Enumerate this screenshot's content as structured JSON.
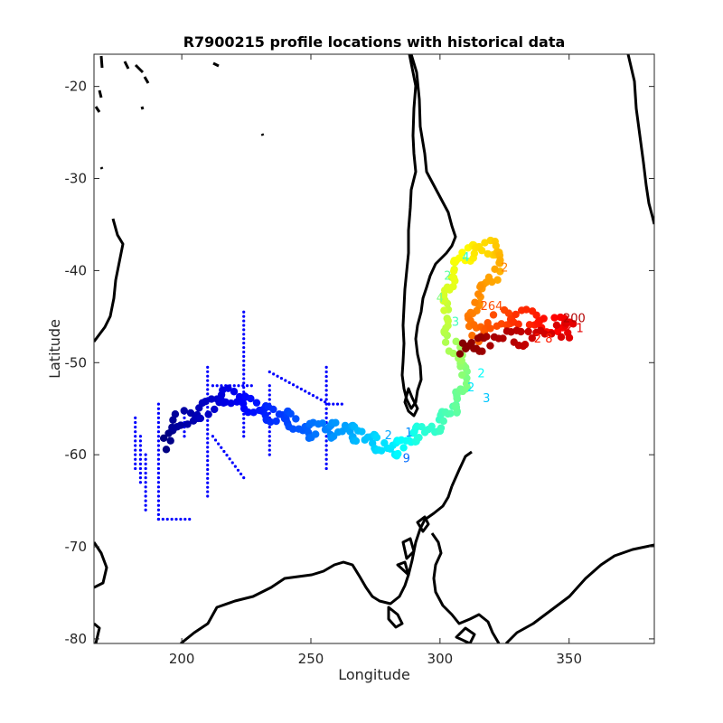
{
  "chart_data": {
    "type": "scatter",
    "title": "R7900215 profile locations with historical data",
    "xlabel": "Longitude",
    "ylabel": "Latitude",
    "xlim": [
      166,
      383
    ],
    "ylim": [
      -80.5,
      -16.5
    ],
    "xticks": [
      200,
      250,
      300,
      350
    ],
    "yticks": [
      -20,
      -30,
      -40,
      -50,
      -60,
      -70,
      -80
    ],
    "grid": false,
    "legend": "none",
    "colormap": "jet",
    "coastline_color": "#000000",
    "historical_color": "#0000ff",
    "trajectory": [
      {
        "x": 193,
        "y": -59
      },
      {
        "x": 196,
        "y": -57
      },
      {
        "x": 200,
        "y": -56
      },
      {
        "x": 205,
        "y": -56
      },
      {
        "x": 210,
        "y": -55
      },
      {
        "x": 214,
        "y": -54
      },
      {
        "x": 218,
        "y": -53.5
      },
      {
        "x": 222,
        "y": -54
      },
      {
        "x": 226,
        "y": -54.5
      },
      {
        "x": 230,
        "y": -55
      },
      {
        "x": 234,
        "y": -55.5
      },
      {
        "x": 238,
        "y": -56
      },
      {
        "x": 242,
        "y": -56
      },
      {
        "x": 246,
        "y": -57
      },
      {
        "x": 250,
        "y": -57.5
      },
      {
        "x": 254,
        "y": -57
      },
      {
        "x": 258,
        "y": -57.5
      },
      {
        "x": 262,
        "y": -57
      },
      {
        "x": 266,
        "y": -57.5
      },
      {
        "x": 270,
        "y": -58
      },
      {
        "x": 274,
        "y": -58.5
      },
      {
        "x": 278,
        "y": -59
      },
      {
        "x": 282,
        "y": -59.5
      },
      {
        "x": 286,
        "y": -59
      },
      {
        "x": 289,
        "y": -58
      },
      {
        "x": 293,
        "y": -57.5
      },
      {
        "x": 298,
        "y": -57
      },
      {
        "x": 302,
        "y": -56
      },
      {
        "x": 305,
        "y": -55
      },
      {
        "x": 307,
        "y": -54
      },
      {
        "x": 309,
        "y": -52.5
      },
      {
        "x": 310,
        "y": -51
      },
      {
        "x": 308,
        "y": -49.5
      },
      {
        "x": 304,
        "y": -48
      },
      {
        "x": 302,
        "y": -46
      },
      {
        "x": 302,
        "y": -44
      },
      {
        "x": 303,
        "y": -42
      },
      {
        "x": 305,
        "y": -40
      },
      {
        "x": 308,
        "y": -38.5
      },
      {
        "x": 312,
        "y": -38
      },
      {
        "x": 316,
        "y": -37.5
      },
      {
        "x": 320,
        "y": -37.5
      },
      {
        "x": 324,
        "y": -38
      },
      {
        "x": 322,
        "y": -40
      },
      {
        "x": 318,
        "y": -41.5
      },
      {
        "x": 314,
        "y": -43
      },
      {
        "x": 312,
        "y": -45
      },
      {
        "x": 313,
        "y": -47
      },
      {
        "x": 318,
        "y": -46.5
      },
      {
        "x": 323,
        "y": -45
      },
      {
        "x": 328,
        "y": -45.5
      },
      {
        "x": 333,
        "y": -45
      },
      {
        "x": 338,
        "y": -45.5
      },
      {
        "x": 343,
        "y": -46
      },
      {
        "x": 348,
        "y": -45.5
      },
      {
        "x": 352,
        "y": -46.5
      },
      {
        "x": 340,
        "y": -46.5
      },
      {
        "x": 333,
        "y": -47.5
      },
      {
        "x": 325,
        "y": -47
      },
      {
        "x": 318,
        "y": -48
      },
      {
        "x": 312,
        "y": -48
      },
      {
        "x": 308,
        "y": -48.5
      }
    ],
    "visible_profile_numbers": [
      "200",
      "2 1",
      "2 8",
      "264",
      "2",
      "4",
      "2",
      "3",
      "4",
      "2",
      "2",
      "3",
      "2",
      "1",
      "9"
    ],
    "historical_tracks": [
      {
        "x": [
          224,
          224
        ],
        "y": [
          -44.5,
          -58
        ]
      },
      {
        "x": [
          210,
          210
        ],
        "y": [
          -50.5,
          -64.5
        ]
      },
      {
        "x": [
          191,
          191
        ],
        "y": [
          -54.5,
          -67
        ]
      },
      {
        "x": [
          182,
          182
        ],
        "y": [
          -56,
          -61.5
        ]
      },
      {
        "x": [
          186,
          186
        ],
        "y": [
          -60,
          -66
        ]
      },
      {
        "x": [
          256,
          256
        ],
        "y": [
          -50.5,
          -61.5
        ]
      },
      {
        "x": [
          234,
          234
        ],
        "y": [
          -52.5,
          -60
        ]
      },
      {
        "x": [
          201,
          201
        ],
        "y": [
          -55,
          -58
        ]
      },
      {
        "x": [
          191,
          203
        ],
        "y": [
          -67,
          -67
        ]
      },
      {
        "x": [
          212,
          227
        ],
        "y": [
          -52.5,
          -52.5
        ]
      },
      {
        "x": [
          234,
          257
        ],
        "y": [
          -51,
          -54.5
        ]
      },
      {
        "x": [
          212,
          224
        ],
        "y": [
          -58,
          -62.5
        ]
      },
      {
        "x": [
          257,
          262
        ],
        "y": [
          -54.5,
          -54.5
        ]
      },
      {
        "x": [
          184,
          184
        ],
        "y": [
          -58,
          -63
        ]
      }
    ]
  }
}
